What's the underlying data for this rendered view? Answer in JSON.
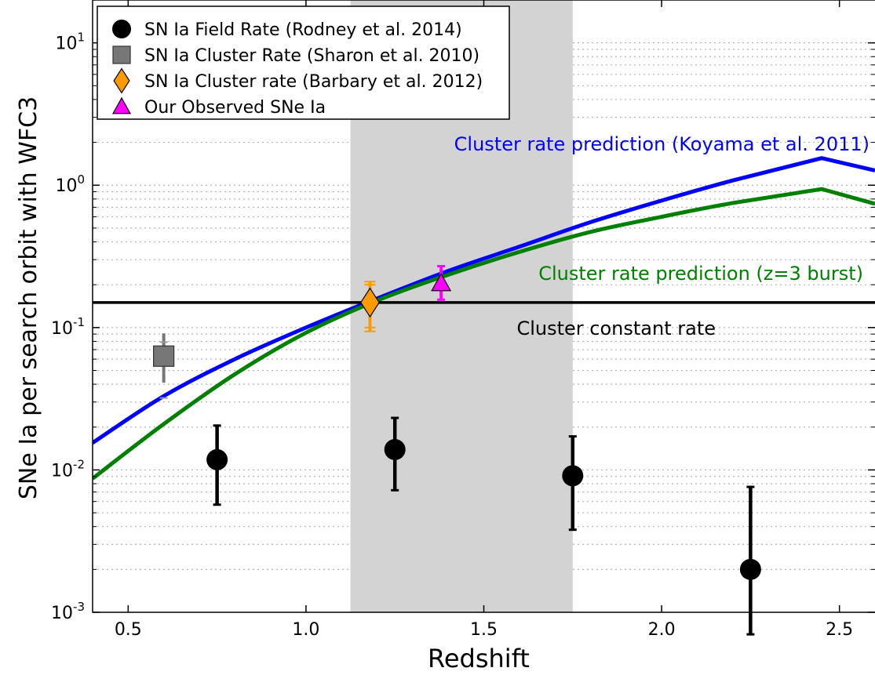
{
  "chart_data": {
    "type": "scatter",
    "xlabel": "Redshift",
    "ylabel": "SNe Ia per search orbit with WFC3",
    "xlim": [
      0.4,
      2.6
    ],
    "ylim": [
      0.001,
      20
    ],
    "y_scale": "log",
    "x_ticks": [
      0.5,
      1.0,
      1.5,
      2.0,
      2.5
    ],
    "x_tick_labels": [
      "0.5",
      "1.0",
      "1.5",
      "2.0",
      "2.5"
    ],
    "y_ticks": [
      {
        "value": 0.001,
        "base": "10",
        "exp": "-3"
      },
      {
        "value": 0.01,
        "base": "10",
        "exp": "-2"
      },
      {
        "value": 0.1,
        "base": "10",
        "exp": "-1"
      },
      {
        "value": 1,
        "base": "10",
        "exp": "0"
      },
      {
        "value": 10,
        "base": "10",
        "exp": "1"
      }
    ],
    "grid": "horizontal dotted (minor log)",
    "legend_position": "top-left",
    "shaded_band": {
      "x_start": 1.125,
      "x_end": 1.75,
      "color": "#d3d3d3"
    },
    "series": [
      {
        "name": "SN Ia Field Rate (Rodney et al. 2014)",
        "marker": "circle",
        "color": "#000000",
        "points": [
          {
            "x": 0.75,
            "y": 0.0118,
            "ylo": 0.0057,
            "yhi": 0.0205
          },
          {
            "x": 1.25,
            "y": 0.0139,
            "ylo": 0.0072,
            "yhi": 0.0232
          },
          {
            "x": 1.75,
            "y": 0.0091,
            "ylo": 0.0038,
            "yhi": 0.0172
          },
          {
            "x": 2.25,
            "y": 0.002,
            "ylo": 0.0007,
            "yhi": 0.0076
          }
        ]
      },
      {
        "name": "SN Ia Cluster Rate (Sharon et al. 2010)",
        "marker": "square",
        "color": "#777777",
        "points": [
          {
            "x": 0.6,
            "y": 0.063,
            "ylo": 0.041,
            "yhi": 0.091,
            "ylo_cap": 0.032,
            "yhi_cap": 0.079
          }
        ]
      },
      {
        "name": "SN Ia Cluster rate (Barbary et al. 2012)",
        "marker": "diamond",
        "color": "#ff9900",
        "points": [
          {
            "x": 1.18,
            "y": 0.15,
            "ylo": 0.094,
            "yhi": 0.21,
            "ylo_cap": 0.1,
            "yhi_cap": 0.2
          }
        ]
      },
      {
        "name": "Our Observed SNe Ia",
        "marker": "triangle",
        "color": "#ff00ff",
        "points": [
          {
            "x": 1.38,
            "y": 0.205,
            "ylo": 0.157,
            "yhi": 0.27
          }
        ]
      }
    ],
    "lines": [
      {
        "label": "Cluster rate prediction (Koyama et al. 2011)",
        "color": "#0000ff",
        "x": [
          0.4,
          0.6,
          0.8,
          1.0,
          1.2,
          1.4,
          1.6,
          1.8,
          2.0,
          2.2,
          2.45,
          2.6
        ],
        "y": [
          0.0155,
          0.033,
          0.06,
          0.1,
          0.16,
          0.25,
          0.37,
          0.55,
          0.78,
          1.08,
          1.55,
          1.27
        ]
      },
      {
        "label": "Cluster rate prediction (z=3 burst)",
        "color": "#008000",
        "x": [
          0.4,
          0.6,
          0.8,
          1.0,
          1.2,
          1.4,
          1.6,
          1.8,
          2.0,
          2.2,
          2.45,
          2.6
        ],
        "y": [
          0.0087,
          0.021,
          0.047,
          0.092,
          0.155,
          0.235,
          0.34,
          0.47,
          0.6,
          0.75,
          0.94,
          0.74
        ]
      },
      {
        "label": "Cluster constant rate",
        "color": "#000000",
        "x": [
          0.4,
          2.6
        ],
        "y": [
          0.15,
          0.15
        ]
      }
    ]
  }
}
